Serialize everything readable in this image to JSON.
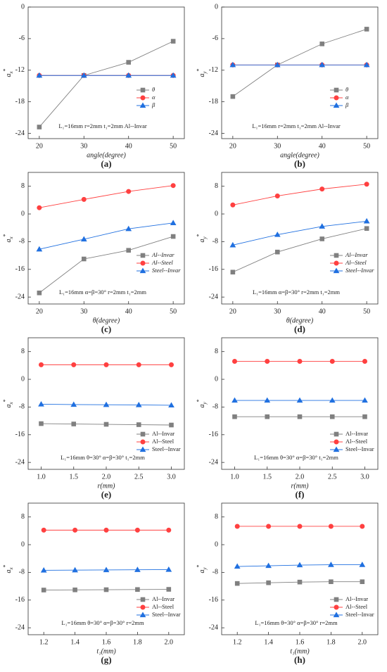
{
  "chart_data": [
    {
      "type": "line",
      "caption": "(a)",
      "ylabel": {
        "text": "a",
        "sub": "x",
        "sup": "*"
      },
      "xlabel": "angle(degree)",
      "annotation": "L₁=16mm r=2mm t₁=2mm Al--Invar",
      "legend": "right",
      "x": [
        20,
        30,
        40,
        50
      ],
      "xlim": [
        17.5,
        52.5
      ],
      "xticks": [
        20,
        30,
        40,
        50
      ],
      "ylim": [
        -25,
        0
      ],
      "yticks": [
        -24,
        -18,
        -12,
        -6,
        0
      ],
      "series": [
        {
          "name": "θ",
          "color": "#808080",
          "marker": "square",
          "values": [
            -22.8,
            -13,
            -10.5,
            -6.5
          ]
        },
        {
          "name": "α",
          "color": "#ff4040",
          "marker": "circle",
          "values": [
            -13,
            -13,
            -13,
            -13
          ]
        },
        {
          "name": "β",
          "color": "#2070e0",
          "marker": "triangle",
          "values": [
            -13,
            -13,
            -13,
            -13
          ]
        }
      ]
    },
    {
      "type": "line",
      "caption": "(b)",
      "ylabel": {
        "text": "a",
        "sub": "y",
        "sup": "*"
      },
      "xlabel": "angle(degree)",
      "annotation": "L₁=16mm r=2mm t₁=2mm Al--Invar",
      "legend": "right",
      "x": [
        20,
        30,
        40,
        50
      ],
      "xlim": [
        17.5,
        52.5
      ],
      "xticks": [
        20,
        30,
        40,
        50
      ],
      "ylim": [
        -25,
        0
      ],
      "yticks": [
        -24,
        -18,
        -12,
        -6,
        0
      ],
      "series": [
        {
          "name": "θ",
          "color": "#808080",
          "marker": "square",
          "values": [
            -17,
            -11,
            -7,
            -4.2
          ]
        },
        {
          "name": "α",
          "color": "#ff4040",
          "marker": "circle",
          "values": [
            -11,
            -11,
            -11,
            -11
          ]
        },
        {
          "name": "β",
          "color": "#2070e0",
          "marker": "triangle",
          "values": [
            -11,
            -11,
            -11,
            -11
          ]
        }
      ]
    },
    {
      "type": "line",
      "caption": "(c)",
      "ylabel": {
        "text": "a",
        "sub": "x",
        "sup": "*"
      },
      "xlabel": "θ(degree)",
      "annotation": "L₁=16mm α=β=30° r=2mm t₁=2mm",
      "legend": "right",
      "x": [
        20,
        30,
        40,
        50
      ],
      "xlim": [
        17.5,
        52.5
      ],
      "xticks": [
        20,
        30,
        40,
        50
      ],
      "ylim": [
        -26,
        12
      ],
      "yticks": [
        -24,
        -16,
        -8,
        0,
        8
      ],
      "series": [
        {
          "name": "Al--Invar",
          "color": "#808080",
          "marker": "square",
          "values": [
            -22.8,
            -13,
            -10.5,
            -6.5
          ]
        },
        {
          "name": "Al--Steel",
          "color": "#ff4040",
          "marker": "circle",
          "values": [
            1.8,
            4.2,
            6.5,
            8.2
          ]
        },
        {
          "name": "Steel--Invar",
          "color": "#2070e0",
          "marker": "triangle",
          "values": [
            -10.2,
            -7.3,
            -4.3,
            -2.6
          ]
        }
      ]
    },
    {
      "type": "line",
      "caption": "(d)",
      "ylabel": {
        "text": "a",
        "sub": "y",
        "sup": "*"
      },
      "xlabel": "θ(degree)",
      "annotation": "L₁=16mm α=β=30° r=2mm t₁=2mm",
      "legend": "right",
      "x": [
        20,
        30,
        40,
        50
      ],
      "xlim": [
        17.5,
        52.5
      ],
      "xticks": [
        20,
        30,
        40,
        50
      ],
      "ylim": [
        -26,
        12
      ],
      "yticks": [
        -24,
        -16,
        -8,
        0,
        8
      ],
      "series": [
        {
          "name": "Al--Invar",
          "color": "#808080",
          "marker": "square",
          "values": [
            -16.8,
            -11,
            -7.2,
            -4.2
          ]
        },
        {
          "name": "Al--Steel",
          "color": "#ff4040",
          "marker": "circle",
          "values": [
            2.6,
            5.2,
            7.2,
            8.6
          ]
        },
        {
          "name": "Steel--Invar",
          "color": "#2070e0",
          "marker": "triangle",
          "values": [
            -9,
            -6,
            -3.6,
            -2.1
          ]
        }
      ]
    },
    {
      "type": "line",
      "caption": "(e)",
      "ylabel": {
        "text": "a",
        "sub": "x",
        "sup": "*"
      },
      "xlabel": "r(mm)",
      "annotation": "L₁=16mm θ=30° α=β=30° t₁=2mm",
      "legend": "lower right",
      "x": [
        1,
        1.5,
        2,
        2.5,
        3
      ],
      "xlim": [
        0.8,
        3.2
      ],
      "xticks": [
        {
          "value": 1,
          "label": "1.0"
        },
        1.5,
        {
          "value": 2,
          "label": "2.0"
        },
        2.5,
        {
          "value": 3,
          "label": "3.0"
        }
      ],
      "ylim": [
        -26,
        12
      ],
      "yticks": [
        -24,
        -16,
        -8,
        0,
        8
      ],
      "series": [
        {
          "name": "Al--Invar",
          "color": "#808080",
          "marker": "square",
          "values": [
            -12.8,
            -12.9,
            -13,
            -13.1,
            -13.2
          ]
        },
        {
          "name": "Al--Steel",
          "color": "#ff4040",
          "marker": "circle",
          "values": [
            4.2,
            4.2,
            4.2,
            4.2,
            4.2
          ]
        },
        {
          "name": "Steel--Invar",
          "color": "#2070e0",
          "marker": "triangle",
          "values": [
            -7.2,
            -7.3,
            -7.35,
            -7.4,
            -7.5
          ]
        }
      ]
    },
    {
      "type": "line",
      "caption": "(f)",
      "ylabel": {
        "text": "a",
        "sub": "y",
        "sup": "*"
      },
      "xlabel": "r(mm)",
      "annotation": "L₁=16mm θ=30° α=β=30° t₁=2mm",
      "legend": "lower right",
      "x": [
        1,
        1.5,
        2,
        2.5,
        3
      ],
      "xlim": [
        0.8,
        3.2
      ],
      "xticks": [
        {
          "value": 1,
          "label": "1.0"
        },
        1.5,
        {
          "value": 2,
          "label": "2.0"
        },
        2.5,
        {
          "value": 3,
          "label": "3.0"
        }
      ],
      "ylim": [
        -26,
        12
      ],
      "yticks": [
        -24,
        -16,
        -8,
        0,
        8
      ],
      "series": [
        {
          "name": "Al--Invar",
          "color": "#808080",
          "marker": "square",
          "values": [
            -10.8,
            -10.8,
            -10.8,
            -10.8,
            -10.8
          ]
        },
        {
          "name": "Al--Steel",
          "color": "#ff4040",
          "marker": "circle",
          "values": [
            5.2,
            5.2,
            5.2,
            5.2,
            5.2
          ]
        },
        {
          "name": "Steel--Invar",
          "color": "#2070e0",
          "marker": "triangle",
          "values": [
            -6.1,
            -6.1,
            -6.1,
            -6.1,
            -6.1
          ]
        }
      ]
    },
    {
      "type": "line",
      "caption": "(g)",
      "ylabel": {
        "text": "a",
        "sub": "x",
        "sup": "*"
      },
      "xlabel": "t₁(mm)",
      "annotation": "L₁=16mm θ=30° α=β=30° r=2mm",
      "legend": "lower right",
      "x": [
        1.2,
        1.4,
        1.6,
        1.8,
        2
      ],
      "xlim": [
        1.1,
        2.1
      ],
      "xticks": [
        1.2,
        1.4,
        1.6,
        1.8,
        {
          "value": 2,
          "label": "2.0"
        }
      ],
      "ylim": [
        -26,
        12
      ],
      "yticks": [
        -24,
        -16,
        -8,
        0,
        8
      ],
      "series": [
        {
          "name": "Al--Invar",
          "color": "#808080",
          "marker": "square",
          "values": [
            -13.1,
            -13.05,
            -13,
            -12.95,
            -12.9
          ]
        },
        {
          "name": "Al--Steel",
          "color": "#ff4040",
          "marker": "circle",
          "values": [
            4.2,
            4.2,
            4.2,
            4.2,
            4.2
          ]
        },
        {
          "name": "Steel--Invar",
          "color": "#2070e0",
          "marker": "triangle",
          "values": [
            -7.4,
            -7.35,
            -7.3,
            -7.25,
            -7.2
          ]
        }
      ]
    },
    {
      "type": "line",
      "caption": "(h)",
      "ylabel": {
        "text": "a",
        "sub": "y",
        "sup": "*"
      },
      "xlabel": "t₁(mm)",
      "annotation": "L₁=16mm θ=30° α=β=30° r=2mm",
      "legend": "lower right",
      "x": [
        1.2,
        1.4,
        1.6,
        1.8,
        2
      ],
      "xlim": [
        1.1,
        2.1
      ],
      "xticks": [
        1.2,
        1.4,
        1.6,
        1.8,
        {
          "value": 2,
          "label": "2.0"
        }
      ],
      "ylim": [
        -26,
        12
      ],
      "yticks": [
        -24,
        -16,
        -8,
        0,
        8
      ],
      "series": [
        {
          "name": "Al--Invar",
          "color": "#808080",
          "marker": "square",
          "values": [
            -11.2,
            -11,
            -10.8,
            -10.7,
            -10.7
          ]
        },
        {
          "name": "Al--Steel",
          "color": "#ff4040",
          "marker": "circle",
          "values": [
            5.3,
            5.3,
            5.3,
            5.3,
            5.3
          ]
        },
        {
          "name": "Steel--Invar",
          "color": "#2070e0",
          "marker": "triangle",
          "values": [
            -6.3,
            -6.1,
            -5.9,
            -5.8,
            -5.8
          ]
        }
      ]
    }
  ]
}
